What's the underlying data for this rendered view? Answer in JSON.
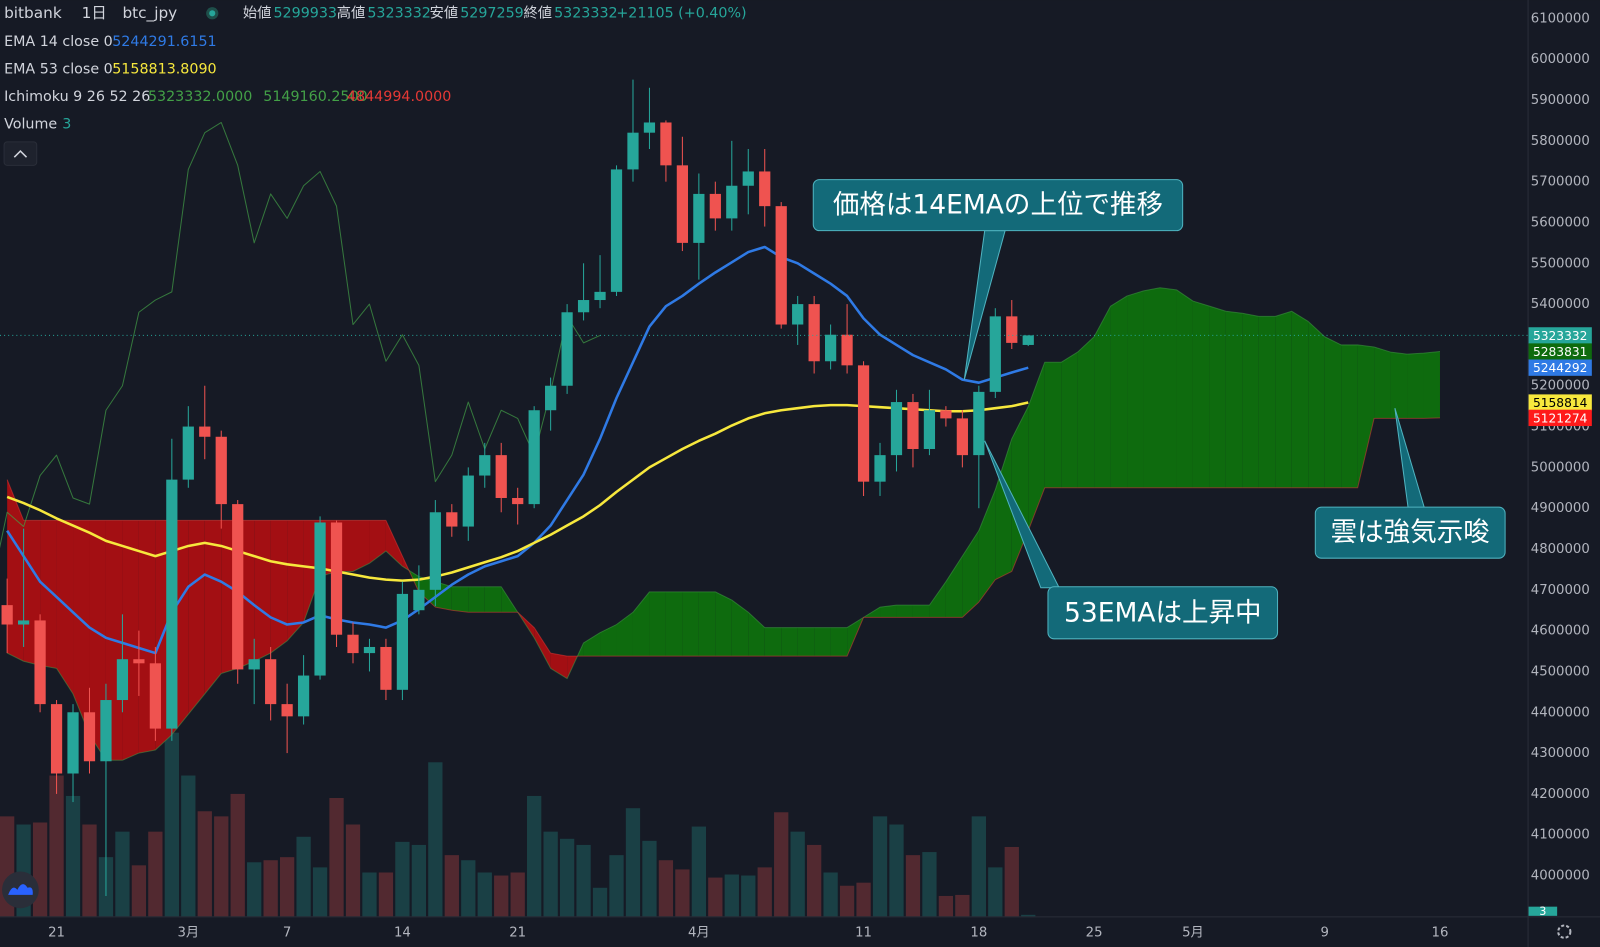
{
  "header": {
    "symbol": "bitbank",
    "interval": "1日",
    "pair": "btc_jpy",
    "open_label": "始値",
    "high_label": "高値",
    "low_label": "安値",
    "close_label": "終値",
    "change": "+21105 (+0.40%)"
  },
  "chart_data": {
    "type": "candlestick",
    "categories": [
      null,
      null,
      null,
      "21",
      null,
      null,
      null,
      null,
      null,
      null,
      null,
      "3月",
      null,
      null,
      null,
      null,
      null,
      "7",
      null,
      null,
      null,
      null,
      null,
      null,
      "14",
      null,
      null,
      null,
      null,
      null,
      null,
      "21",
      null,
      null,
      null,
      null,
      null,
      null,
      null,
      null,
      null,
      null,
      "4月",
      null,
      null,
      null,
      null,
      null,
      null,
      null,
      null,
      null,
      "11",
      null,
      null,
      null,
      null,
      null,
      null,
      "18",
      null,
      null,
      null,
      null,
      null,
      null,
      "25",
      null,
      null,
      null,
      null,
      null,
      "5月",
      null,
      null,
      null,
      null,
      null,
      null,
      null,
      "9",
      null,
      null,
      null,
      null,
      null,
      null,
      "16"
    ],
    "open": [
      4662500,
      4615000,
      4625000,
      4420000,
      4250000,
      4400000,
      4280000,
      4430000,
      4530000,
      4520000,
      4360000,
      4970000,
      5100000,
      5075000,
      4910000,
      4505000,
      4530000,
      4420000,
      4390000,
      4490000,
      4865000,
      4590000,
      4545000,
      4560000,
      4455000,
      4650000,
      4700000,
      4890000,
      4855000,
      4980000,
      5030000,
      4925000,
      4910000,
      5140000,
      5200000,
      5380000,
      5410000,
      5430000,
      5730000,
      5820000,
      5845000,
      5740000,
      5550000,
      5670000,
      5610000,
      5690000,
      5725000,
      5640000,
      5350000,
      5400000,
      5260000,
      5325000,
      5250000,
      4965000,
      5030000,
      5160000,
      5045000,
      5140000,
      5120000,
      5030000,
      5185000,
      5370000,
      5299933,
      null,
      null,
      null,
      null,
      null,
      null,
      null,
      null,
      null,
      null,
      null,
      null,
      null,
      null,
      null,
      null,
      null,
      null,
      null,
      null,
      null,
      null,
      null,
      null,
      null
    ],
    "high": [
      4727500,
      4850000,
      4640000,
      4430000,
      4420000,
      4460000,
      4470000,
      4640000,
      4600000,
      4560000,
      5070000,
      5150000,
      5200000,
      5090000,
      4920000,
      4580000,
      4560000,
      4470000,
      4540000,
      4880000,
      4870000,
      4620000,
      4580000,
      4580000,
      4720000,
      4760000,
      4920000,
      4910000,
      5000000,
      5060000,
      5060000,
      4950000,
      5150000,
      5220000,
      5400000,
      5500000,
      5520000,
      5740000,
      5950000,
      5930000,
      5850000,
      5810000,
      5720000,
      5700000,
      5800000,
      5780000,
      5780000,
      5650000,
      5420000,
      5420000,
      5350000,
      5400000,
      5260000,
      5060000,
      5190000,
      5180000,
      5190000,
      5150000,
      5140000,
      5200000,
      5390000,
      5410000,
      5323332,
      null,
      null,
      null,
      null,
      null,
      null,
      null,
      null,
      null,
      null,
      null,
      null,
      null,
      null,
      null,
      null,
      null,
      null,
      null,
      null,
      null,
      null,
      null,
      null,
      null
    ],
    "low": [
      4545000,
      4560000,
      4400000,
      4200000,
      4180000,
      4250000,
      3950000,
      4400000,
      4440000,
      4330000,
      4330000,
      4950000,
      5020000,
      4850000,
      4470000,
      4420000,
      4380000,
      4300000,
      4370000,
      4480000,
      4560000,
      4520000,
      4500000,
      4430000,
      4430000,
      4640000,
      4660000,
      4830000,
      4820000,
      4950000,
      4890000,
      4860000,
      4900000,
      5090000,
      5180000,
      5360000,
      5390000,
      5420000,
      5700000,
      5780000,
      5700000,
      5530000,
      5460000,
      5580000,
      5580000,
      5620000,
      5590000,
      5340000,
      5300000,
      5230000,
      5240000,
      5230000,
      4930000,
      4930000,
      4990000,
      5000000,
      5030000,
      5100000,
      5000000,
      4900000,
      5170000,
      5290000,
      5297259,
      null,
      null,
      null,
      null,
      null,
      null,
      null,
      null,
      null,
      null,
      null,
      null,
      null,
      null,
      null,
      null,
      null,
      null,
      null,
      null,
      null,
      null,
      null,
      null,
      null
    ],
    "close": [
      4615000,
      4625000,
      4420000,
      4250000,
      4400000,
      4280000,
      4430000,
      4530000,
      4520000,
      4360000,
      4970000,
      5100000,
      5075000,
      4910000,
      4505000,
      4530000,
      4420000,
      4390000,
      4490000,
      4865000,
      4590000,
      4545000,
      4560000,
      4455000,
      4690000,
      4700000,
      4890000,
      4855000,
      4980000,
      5030000,
      4925000,
      4910000,
      5140000,
      5200000,
      5380000,
      5410000,
      5430000,
      5730000,
      5820000,
      5845000,
      5740000,
      5550000,
      5670000,
      5610000,
      5690000,
      5725000,
      5640000,
      5350000,
      5400000,
      5260000,
      5325000,
      5250000,
      4965000,
      5030000,
      5160000,
      5045000,
      5140000,
      5120000,
      5030000,
      5185000,
      5370000,
      5305000,
      5323332,
      null,
      null,
      null,
      null,
      null,
      null,
      null,
      null,
      null,
      null,
      null,
      null,
      null,
      null,
      null,
      null,
      null,
      null,
      null,
      null,
      null,
      null,
      null,
      null,
      null
    ],
    "up_color": "#26a69a",
    "down_color": "#ef5350",
    "volume_name": "Volume",
    "volume": [
      196,
      180,
      184,
      276,
      236,
      180,
      116,
      166,
      100,
      166,
      360,
      276,
      206,
      196,
      240,
      106,
      110,
      116,
      156,
      96,
      232,
      180,
      86,
      86,
      146,
      140,
      302,
      120,
      110,
      86,
      80,
      86,
      236,
      166,
      152,
      140,
      56,
      120,
      212,
      148,
      110,
      92,
      176,
      76,
      82,
      80,
      96,
      204,
      166,
      140,
      86,
      60,
      66,
      196,
      180,
      120,
      126,
      40,
      42,
      196,
      96,
      136,
      3,
      null,
      null,
      null,
      null,
      null,
      null,
      null,
      null,
      null,
      null,
      null,
      null,
      null,
      null,
      null,
      null,
      null,
      null,
      null,
      null,
      null,
      null,
      null,
      null,
      null
    ],
    "volume_lim": [
      0,
      450
    ],
    "ylim": [
      3900000,
      6145000
    ],
    "yticks": [
      4000000,
      4100000,
      4200000,
      4300000,
      4400000,
      4500000,
      4600000,
      4700000,
      4800000,
      4900000,
      5000000,
      5100000,
      5200000,
      5300000,
      5400000,
      5500000,
      5600000,
      5700000,
      5800000,
      5900000,
      6000000,
      6100000
    ],
    "grid": false,
    "series": [
      {
        "name": "EMA 14 close 0",
        "color": "#2f7ae5",
        "legend_label": "5244291.6151",
        "axis_label": "5244292",
        "values": [
          4845000,
          4782500,
          4720000,
          4682500,
          4645000,
          4607500,
          4582500,
          4570000,
          4557500,
          4545000,
          4645000,
          4707500,
          4737500,
          4720000,
          4695000,
          4662500,
          4632500,
          4615000,
          4620000,
          4637500,
          4627500,
          4620000,
          4615000,
          4607500,
          4625000,
          4652500,
          4682500,
          4712500,
          4737500,
          4757500,
          4770000,
          4782500,
          4815000,
          4857500,
          4920000,
          4982500,
          5070000,
          5170000,
          5257500,
          5345000,
          5395000,
          5420000,
          5450000,
          5477500,
          5502500,
          5527500,
          5540000,
          5515000,
          5500000,
          5475000,
          5450000,
          5420000,
          5365000,
          5325000,
          5300000,
          5275000,
          5257500,
          5240000,
          5215000,
          5207500,
          5220000,
          5232500,
          5244291.6151,
          null,
          null,
          null,
          null,
          null,
          null,
          null,
          null,
          null,
          null,
          null,
          null,
          null,
          null,
          null,
          null,
          null,
          null,
          null,
          null,
          null,
          null,
          null,
          null,
          null
        ]
      },
      {
        "name": "EMA 53 close 0",
        "color": "#f7e83d",
        "legend_label": "5158813.8090",
        "axis_label": "5158814",
        "values": [
          4927500,
          4912500,
          4895000,
          4875000,
          4857500,
          4840000,
          4820000,
          4807500,
          4795000,
          4782500,
          4795000,
          4807500,
          4815000,
          4807500,
          4795000,
          4782500,
          4770000,
          4762500,
          4757500,
          4752500,
          4745000,
          4737500,
          4730000,
          4725000,
          4722500,
          4725000,
          4732500,
          4742500,
          4755000,
          4767500,
          4780000,
          4795000,
          4815000,
          4835000,
          4857500,
          4880000,
          4907500,
          4940000,
          4970000,
          5000000,
          5022500,
          5045000,
          5065000,
          5082500,
          5102500,
          5120000,
          5132500,
          5140000,
          5145000,
          5150000,
          5152500,
          5152500,
          5150000,
          5147500,
          5145000,
          5142500,
          5140000,
          5137500,
          5137500,
          5140000,
          5145000,
          5150000,
          5158813.809,
          null,
          null,
          null,
          null,
          null,
          null,
          null,
          null,
          null,
          null,
          null,
          null,
          null,
          null,
          null,
          null,
          null,
          null,
          null,
          null,
          null,
          null,
          null,
          null,
          null
        ]
      }
    ],
    "ichimoku": {
      "name": "Ichimoku 9 26 52 26",
      "lagging_shift": 26,
      "lagging_color": "#43a047",
      "legend_labels": [
        "5323332.0000",
        "5149160.2500",
        "4844994.0000"
      ],
      "cloud_up_color": "#0e6b0e",
      "cloud_down_color": "#a30f13",
      "span_a": {
        "color": "#43a047",
        "values": [
          4545000,
          4525000,
          4515000,
          4507500,
          4445000,
          4345000,
          4282500,
          4282500,
          4300000,
          4307500,
          4345000,
          4395000,
          4445000,
          4495000,
          4507500,
          4525000,
          4545000,
          4575000,
          4620000,
          4732500,
          4745000,
          4745000,
          4765000,
          4795000,
          4757500,
          4732500,
          4720000,
          4707500,
          4707500,
          4707500,
          4707500,
          4645000,
          4582500,
          4507500,
          4482500,
          4570000,
          4595000,
          4615000,
          4645000,
          4695000,
          4695000,
          4695000,
          4695000,
          4695000,
          4675000,
          4645000,
          4607500,
          4607500,
          4607500,
          4607500,
          4607500,
          4607500,
          4632500,
          4657500,
          4662500,
          4662500,
          4662500,
          4720000,
          4782500,
          4845000,
          4945000,
          5070000,
          5149160.25,
          5257500,
          5257500,
          5282500,
          5320000,
          5395000,
          5420000,
          5432500,
          5440000,
          5435000,
          5407500,
          5395000,
          5382500,
          5377500,
          5370000,
          5370000,
          5382500,
          5357500,
          5320000,
          5300000,
          5300000,
          5295000,
          5282500,
          5277500,
          5280000,
          5283831
        ]
      },
      "span_b": {
        "color": "#e53935",
        "values": [
          4970000,
          4870000,
          4870000,
          4870000,
          4870000,
          4870000,
          4870000,
          4870000,
          4870000,
          4870000,
          4870000,
          4870000,
          4870000,
          4870000,
          4870000,
          4870000,
          4870000,
          4870000,
          4870000,
          4870000,
          4870000,
          4870000,
          4870000,
          4870000,
          4782500,
          4695000,
          4657500,
          4650000,
          4645000,
          4645000,
          4645000,
          4645000,
          4607500,
          4545000,
          4537500,
          4537500,
          4537500,
          4537500,
          4537500,
          4537500,
          4537500,
          4537500,
          4537500,
          4537500,
          4537500,
          4537500,
          4537500,
          4537500,
          4537500,
          4537500,
          4537500,
          4537500,
          4632500,
          4632500,
          4632500,
          4632500,
          4632500,
          4632500,
          4632500,
          4670000,
          4725000,
          4745000,
          4844994,
          4950000,
          4950000,
          4950000,
          4950000,
          4950000,
          4950000,
          4950000,
          4950000,
          4950000,
          4950000,
          4950000,
          4950000,
          4950000,
          4950000,
          4950000,
          4950000,
          4950000,
          4950000,
          4950000,
          4950000,
          5120000,
          5120000,
          5120000,
          5120000,
          5121274
        ]
      }
    },
    "annotations": [
      {
        "text": "価格は14EMAの上位で推移"
      },
      {
        "text": "53EMAは上昇中"
      },
      {
        "text": "雲は強気示唆"
      }
    ]
  }
}
